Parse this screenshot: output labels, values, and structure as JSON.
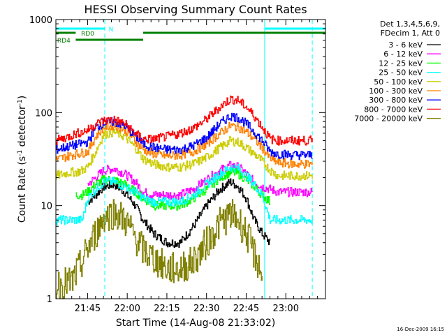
{
  "chart_data": {
    "type": "line",
    "title": "HESSI Observing Summary Count Rates",
    "xlabel": "Start Time (14-Aug-08 21:33:02)",
    "ylabel_main": "Count Rate (s",
    "ylabel_sup1": "-1",
    "ylabel_mid": " detector",
    "ylabel_sup2": "-1",
    "ylabel_end": ")",
    "date_stamp": "16-Dec-2009 16:15",
    "x_unit": "minutes after 21:33:02",
    "xlim": [
      0,
      102
    ],
    "ylim": [
      1,
      1000
    ],
    "y_scale": "log",
    "x_ticks": [
      {
        "value": 12,
        "label": "21:45"
      },
      {
        "value": 27,
        "label": "22:00"
      },
      {
        "value": 42,
        "label": "22:15"
      },
      {
        "value": 57,
        "label": "22:30"
      },
      {
        "value": 72,
        "label": "22:45"
      },
      {
        "value": 87,
        "label": "23:00"
      }
    ],
    "y_ticks": [
      {
        "value": 1,
        "label": "1"
      },
      {
        "value": 10,
        "label": "10"
      },
      {
        "value": 100,
        "label": "100"
      },
      {
        "value": 1000,
        "label": "1000"
      }
    ],
    "legend": {
      "placement": "right",
      "header": [
        "Det 1,3,4,5,6,9,",
        "FDecim 1, Att 0"
      ]
    },
    "flags": [
      {
        "label": "N",
        "color": "#00ffff",
        "segments": [
          [
            0,
            18.5
          ],
          [
            79,
            102
          ]
        ],
        "label_at": 20
      },
      {
        "label": "RD0",
        "color": "#008000",
        "segments": [
          [
            0,
            7.5
          ],
          [
            33,
            102
          ]
        ],
        "label_at": 9.5
      },
      {
        "label": "RD4",
        "color": "#008000",
        "segments": [
          [
            7.5,
            33
          ]
        ],
        "label_at": 0.5
      }
    ],
    "vlines": [
      {
        "x": 18.5,
        "style": "dashed"
      },
      {
        "x": 79,
        "style": "solid"
      },
      {
        "x": 97,
        "style": "dashed"
      }
    ],
    "series": [
      {
        "name": "3 - 6 keV",
        "color": "#000000",
        "x": [
          12,
          15,
          18,
          22,
          26,
          30,
          33,
          37,
          42,
          47,
          52,
          57,
          62,
          66,
          69,
          72,
          75,
          78,
          81
        ],
        "y": [
          11,
          13,
          16,
          17,
          14,
          10,
          7,
          5,
          4,
          4,
          6,
          10,
          15,
          18,
          16,
          12,
          7,
          5,
          4
        ]
      },
      {
        "name": "6 - 12 keV",
        "color": "#ff00ff",
        "x": [
          12,
          15,
          18,
          22,
          26,
          30,
          33,
          37,
          42,
          47,
          52,
          57,
          62,
          66,
          69,
          72,
          75,
          78,
          81,
          84,
          90,
          97
        ],
        "y": [
          17,
          20,
          24,
          25,
          22,
          18,
          14,
          13,
          13,
          13,
          15,
          19,
          24,
          27,
          26,
          22,
          18,
          16,
          15,
          14,
          14,
          14
        ]
      },
      {
        "name": "12 - 25 keV",
        "color": "#00ff00",
        "x": [
          7.5,
          10,
          12,
          15,
          18,
          22,
          26,
          30,
          33,
          37,
          42,
          47,
          52,
          57,
          62,
          66,
          69,
          72,
          75,
          78,
          81
        ],
        "y": [
          13,
          13,
          14,
          17,
          19,
          19,
          17,
          14,
          12,
          10,
          10,
          10,
          12,
          15,
          20,
          23,
          22,
          19,
          16,
          13,
          11
        ]
      },
      {
        "name": "25 - 50 keV",
        "color": "#00ffff",
        "x": [
          0,
          3,
          6,
          8,
          10,
          12,
          15,
          18,
          22,
          26,
          30,
          33,
          37,
          42,
          47,
          52,
          57,
          62,
          66,
          69,
          72,
          75,
          78,
          81,
          84,
          90,
          97
        ],
        "y": [
          7,
          7,
          7,
          7,
          7,
          12,
          15,
          18,
          18,
          16,
          14,
          12,
          11,
          11,
          11,
          13,
          17,
          22,
          26,
          25,
          21,
          17,
          13,
          7,
          7,
          7,
          7
        ]
      },
      {
        "name": "50 - 100 keV",
        "color": "#cccc00",
        "x": [
          0,
          3,
          6,
          8,
          10,
          12,
          15,
          18,
          22,
          26,
          30,
          33,
          37,
          42,
          47,
          52,
          57,
          62,
          66,
          69,
          72,
          75,
          78,
          81,
          84,
          90,
          97
        ],
        "y": [
          21,
          22,
          23,
          23,
          24,
          26,
          38,
          58,
          62,
          55,
          42,
          32,
          28,
          26,
          26,
          28,
          33,
          42,
          50,
          48,
          42,
          36,
          30,
          24,
          21,
          21,
          21
        ]
      },
      {
        "name": "100 - 300 keV",
        "color": "#ff8000",
        "x": [
          0,
          3,
          6,
          8,
          10,
          12,
          15,
          18,
          22,
          26,
          30,
          33,
          37,
          42,
          47,
          52,
          57,
          62,
          66,
          69,
          72,
          75,
          78,
          81,
          84,
          90,
          97
        ],
        "y": [
          31,
          33,
          35,
          36,
          37,
          38,
          55,
          70,
          73,
          66,
          50,
          40,
          36,
          34,
          35,
          38,
          46,
          60,
          72,
          70,
          62,
          52,
          42,
          32,
          29,
          28,
          28
        ]
      },
      {
        "name": "300 - 800 keV",
        "color": "#0000ff",
        "x": [
          0,
          3,
          6,
          8,
          10,
          12,
          15,
          18,
          22,
          26,
          30,
          33,
          37,
          42,
          47,
          52,
          57,
          62,
          66,
          69,
          72,
          75,
          78,
          81,
          84,
          90,
          97
        ],
        "y": [
          40,
          42,
          44,
          45,
          47,
          48,
          68,
          78,
          80,
          72,
          56,
          46,
          42,
          40,
          40,
          44,
          54,
          76,
          92,
          88,
          76,
          62,
          50,
          38,
          36,
          35,
          35
        ]
      },
      {
        "name": "800 - 7000 keV",
        "color": "#ff0000",
        "x": [
          0,
          3,
          6,
          8,
          10,
          12,
          15,
          18,
          22,
          26,
          30,
          33,
          37,
          42,
          47,
          52,
          57,
          62,
          66,
          69,
          72,
          75,
          78,
          81,
          84,
          90,
          97
        ],
        "y": [
          50,
          53,
          57,
          60,
          62,
          65,
          75,
          82,
          84,
          76,
          60,
          52,
          52,
          55,
          60,
          68,
          85,
          115,
          140,
          135,
          115,
          92,
          70,
          52,
          50,
          50,
          50
        ]
      },
      {
        "name": "7000 - 20000 keV",
        "color": "#808000",
        "x": [
          0,
          6,
          10,
          12,
          15,
          18,
          22,
          26,
          30,
          33,
          37,
          42,
          47,
          52,
          57,
          62,
          66,
          69,
          72,
          75,
          78
        ],
        "y": [
          1.4,
          1.5,
          2.5,
          3.5,
          5,
          7.5,
          8.5,
          7,
          4.5,
          3.3,
          2.7,
          2.1,
          2.1,
          2.5,
          4,
          6.5,
          8,
          7,
          5,
          3,
          1.8
        ]
      }
    ]
  }
}
